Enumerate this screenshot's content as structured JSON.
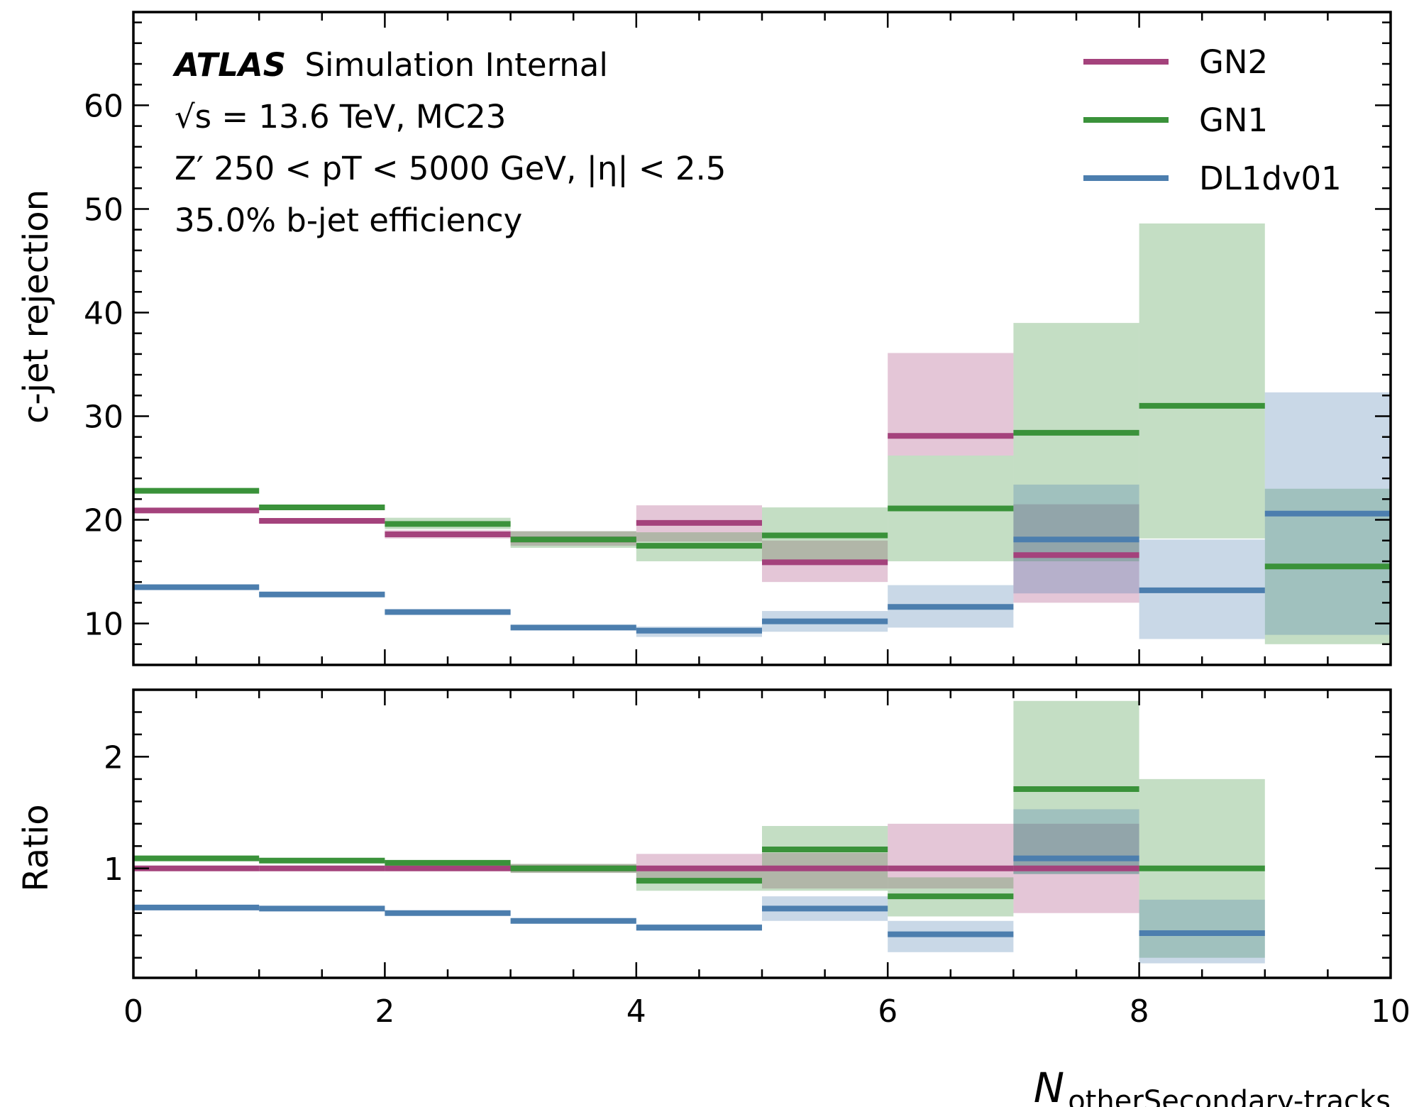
{
  "chart_data": {
    "type": "step-histogram-with-ratio",
    "annotation": {
      "experiment": "ATLAS",
      "experiment_suffix": "Simulation Internal",
      "line2": "√s = 13.6 TeV, MC23",
      "line3": "Z′ 250 < pT < 5000 GeV, |η| < 2.5",
      "line4": "35.0% b-jet efficiency"
    },
    "xlabel": "N_otherSecondary-tracks",
    "xlabel_main": "N",
    "xlabel_sub": "otherSecondary-tracks",
    "xlim": [
      0,
      10
    ],
    "xticks": [
      "0",
      "2",
      "4",
      "6",
      "8",
      "10"
    ],
    "bin_edges": [
      0,
      1,
      2,
      3,
      4,
      5,
      6,
      7,
      8,
      9,
      10
    ],
    "legend_position": "top-right",
    "colors": {
      "GN2": "#a4427c",
      "GN1": "#3a923a",
      "DL1dv01": "#4c7eae"
    },
    "top": {
      "ylabel": "c-jet rejection",
      "ylim": [
        6,
        69
      ],
      "yticks": [
        "10",
        "20",
        "30",
        "40",
        "50",
        "60"
      ],
      "series": [
        {
          "name": "GN2",
          "values": [
            20.9,
            19.9,
            18.6,
            18.1,
            19.7,
            15.9,
            28.1,
            16.6,
            null,
            null
          ],
          "uncert_low": [
            20.7,
            19.7,
            18.2,
            17.5,
            17.9,
            14.0,
            26.2,
            12.0,
            null,
            null
          ],
          "uncert_high": [
            21.1,
            20.1,
            19.0,
            18.9,
            21.4,
            18.0,
            36.1,
            21.5,
            null,
            null
          ]
        },
        {
          "name": "GN1",
          "values": [
            22.8,
            21.2,
            19.6,
            18.1,
            17.5,
            18.5,
            21.1,
            28.4,
            31.0,
            15.5
          ],
          "uncert_low": [
            22.6,
            21.0,
            19.1,
            17.3,
            16.0,
            16.0,
            16.0,
            16.0,
            18.2,
            8.0
          ],
          "uncert_high": [
            23.0,
            21.4,
            20.2,
            18.9,
            18.8,
            21.2,
            26.2,
            39.0,
            48.6,
            23.0
          ]
        },
        {
          "name": "DL1dv01",
          "values": [
            13.5,
            12.8,
            11.1,
            9.6,
            9.3,
            10.2,
            11.6,
            18.1,
            13.2,
            20.6
          ],
          "uncert_low": [
            13.3,
            12.6,
            10.9,
            9.4,
            8.7,
            9.2,
            9.6,
            12.9,
            8.5,
            8.9
          ],
          "uncert_high": [
            13.7,
            13.0,
            11.3,
            9.8,
            9.7,
            11.2,
            13.7,
            23.4,
            18.1,
            32.3
          ]
        }
      ]
    },
    "bottom": {
      "ylabel": "Ratio",
      "ylim": [
        0.02,
        2.6
      ],
      "yticks": [
        "1",
        "2"
      ],
      "reference": "GN2",
      "series": [
        {
          "name": "GN2",
          "values": [
            1.0,
            1.0,
            1.0,
            1.0,
            1.0,
            1.0,
            1.0,
            1.0,
            null,
            null
          ],
          "uncert_low": [
            1.0,
            1.0,
            0.98,
            0.96,
            0.89,
            0.82,
            0.82,
            0.6,
            null,
            null
          ],
          "uncert_high": [
            1.0,
            1.0,
            1.02,
            1.04,
            1.13,
            1.14,
            1.4,
            1.4,
            null,
            null
          ]
        },
        {
          "name": "GN1",
          "values": [
            1.09,
            1.07,
            1.05,
            1.0,
            0.89,
            1.17,
            0.75,
            1.71,
            1.0,
            null
          ],
          "uncert_low": [
            1.08,
            1.06,
            1.03,
            0.96,
            0.8,
            0.8,
            0.57,
            0.95,
            0.2,
            null
          ],
          "uncert_high": [
            1.1,
            1.08,
            1.07,
            1.04,
            0.98,
            1.38,
            0.92,
            2.5,
            1.8,
            null
          ]
        },
        {
          "name": "DL1dv01",
          "values": [
            0.65,
            0.64,
            0.6,
            0.53,
            0.47,
            0.64,
            0.41,
            1.09,
            0.42,
            null
          ],
          "uncert_low": [
            0.64,
            0.63,
            0.58,
            0.51,
            0.44,
            0.53,
            0.25,
            0.95,
            0.15,
            null
          ],
          "uncert_high": [
            0.66,
            0.65,
            0.62,
            0.55,
            0.5,
            0.75,
            0.53,
            1.53,
            0.72,
            null
          ]
        }
      ]
    }
  }
}
